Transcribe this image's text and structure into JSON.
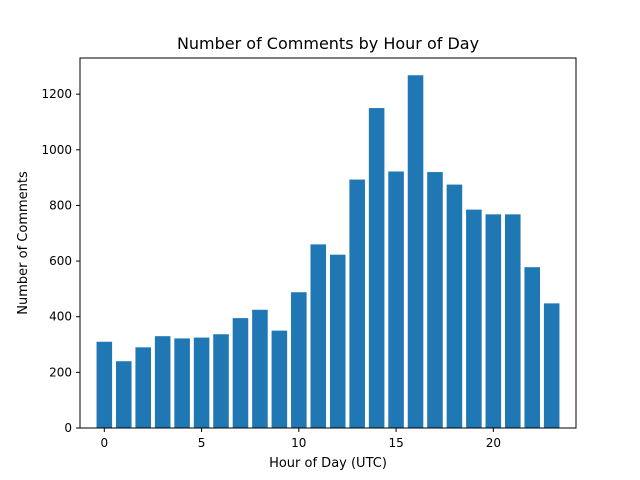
{
  "chart_data": {
    "type": "bar",
    "title": "Number of Comments by Hour of Day",
    "xlabel": "Hour of Day (UTC)",
    "ylabel": "Number of Comments",
    "x": [
      0,
      1,
      2,
      3,
      4,
      5,
      6,
      7,
      8,
      9,
      10,
      11,
      12,
      13,
      14,
      15,
      16,
      17,
      18,
      19,
      20,
      21,
      22,
      23
    ],
    "values": [
      310,
      240,
      290,
      330,
      322,
      325,
      337,
      395,
      425,
      350,
      488,
      660,
      623,
      893,
      1150,
      922,
      1268,
      920,
      875,
      785,
      768,
      768,
      578,
      448
    ],
    "xlim": [
      -1.25,
      24.25
    ],
    "ylim": [
      0,
      1330
    ],
    "xticks": [
      0,
      5,
      10,
      15,
      20
    ],
    "yticks": [
      0,
      200,
      400,
      600,
      800,
      1000,
      1200
    ],
    "bar_color": "#1f77b4",
    "grid": false,
    "legend": "none"
  }
}
